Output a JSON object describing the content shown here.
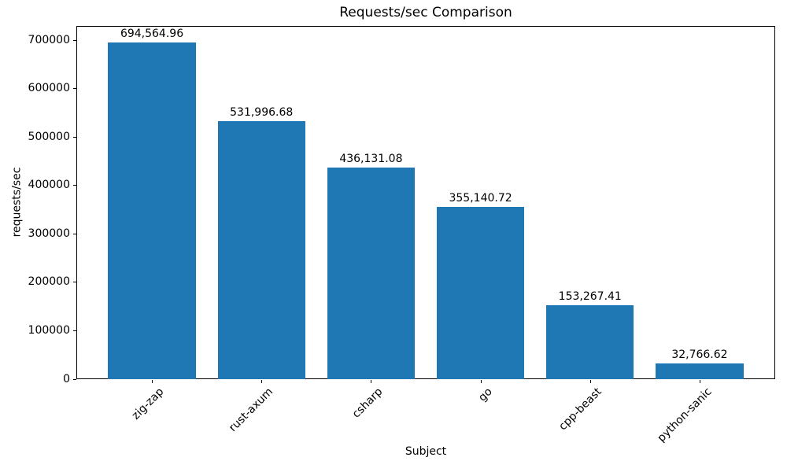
{
  "chart_data": {
    "type": "bar",
    "title": "Requests/sec Comparison",
    "xlabel": "Subject",
    "ylabel": "requests/sec",
    "categories": [
      "zig-zap",
      "rust-axum",
      "csharp",
      "go",
      "cpp-beast",
      "python-sanic"
    ],
    "values": [
      694564.96,
      531996.68,
      436131.08,
      355140.72,
      153267.41,
      32766.62
    ],
    "value_labels": [
      "694,564.96",
      "531,996.68",
      "436,131.08",
      "355,140.72",
      "153,267.41",
      "32,766.62"
    ],
    "ytick_values": [
      0,
      100000,
      200000,
      300000,
      400000,
      500000,
      600000,
      700000
    ],
    "ytick_labels": [
      "0",
      "100000",
      "200000",
      "300000",
      "400000",
      "500000",
      "600000",
      "700000"
    ],
    "ylim": [
      0,
      729293
    ],
    "bar_color": "#1f77b4",
    "bar_width_fraction": 0.8,
    "x_tick_rotation": 45,
    "grid": false,
    "legend": "none"
  }
}
